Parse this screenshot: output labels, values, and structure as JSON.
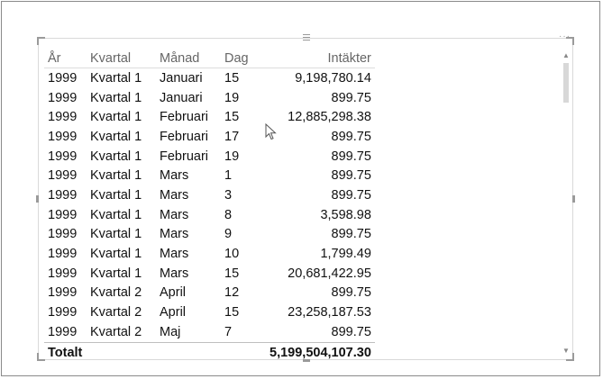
{
  "table": {
    "headers": {
      "year": "År",
      "quarter": "Kvartal",
      "month": "Månad",
      "day": "Dag",
      "revenue": "Intäkter"
    },
    "rows": [
      {
        "year": "1999",
        "quarter": "Kvartal 1",
        "month": "Januari",
        "day": "15",
        "revenue": "9,198,780.14"
      },
      {
        "year": "1999",
        "quarter": "Kvartal 1",
        "month": "Januari",
        "day": "19",
        "revenue": "899.75"
      },
      {
        "year": "1999",
        "quarter": "Kvartal 1",
        "month": "Februari",
        "day": "15",
        "revenue": "12,885,298.38"
      },
      {
        "year": "1999",
        "quarter": "Kvartal 1",
        "month": "Februari",
        "day": "17",
        "revenue": "899.75"
      },
      {
        "year": "1999",
        "quarter": "Kvartal 1",
        "month": "Februari",
        "day": "19",
        "revenue": "899.75"
      },
      {
        "year": "1999",
        "quarter": "Kvartal 1",
        "month": "Mars",
        "day": "1",
        "revenue": "899.75"
      },
      {
        "year": "1999",
        "quarter": "Kvartal 1",
        "month": "Mars",
        "day": "3",
        "revenue": "899.75"
      },
      {
        "year": "1999",
        "quarter": "Kvartal 1",
        "month": "Mars",
        "day": "8",
        "revenue": "3,598.98"
      },
      {
        "year": "1999",
        "quarter": "Kvartal 1",
        "month": "Mars",
        "day": "9",
        "revenue": "899.75"
      },
      {
        "year": "1999",
        "quarter": "Kvartal 1",
        "month": "Mars",
        "day": "10",
        "revenue": "1,799.49"
      },
      {
        "year": "1999",
        "quarter": "Kvartal 1",
        "month": "Mars",
        "day": "15",
        "revenue": "20,681,422.95"
      },
      {
        "year": "1999",
        "quarter": "Kvartal 2",
        "month": "April",
        "day": "12",
        "revenue": "899.75"
      },
      {
        "year": "1999",
        "quarter": "Kvartal 2",
        "month": "April",
        "day": "15",
        "revenue": "23,258,187.53"
      },
      {
        "year": "1999",
        "quarter": "Kvartal 2",
        "month": "Maj",
        "day": "7",
        "revenue": "899.75"
      }
    ],
    "total": {
      "label": "Totalt",
      "revenue": "5,199,504,107.30"
    }
  },
  "icons": {
    "drag_grip": "drag-grip-icon",
    "focus_mode": "more-options-icon",
    "cursor": "mouse-pointer-icon"
  },
  "colors": {
    "header_text": "#666666",
    "body_text": "#111111",
    "frame_border": "#8a8a8a",
    "scroll_thumb": "#d8d8d8"
  }
}
